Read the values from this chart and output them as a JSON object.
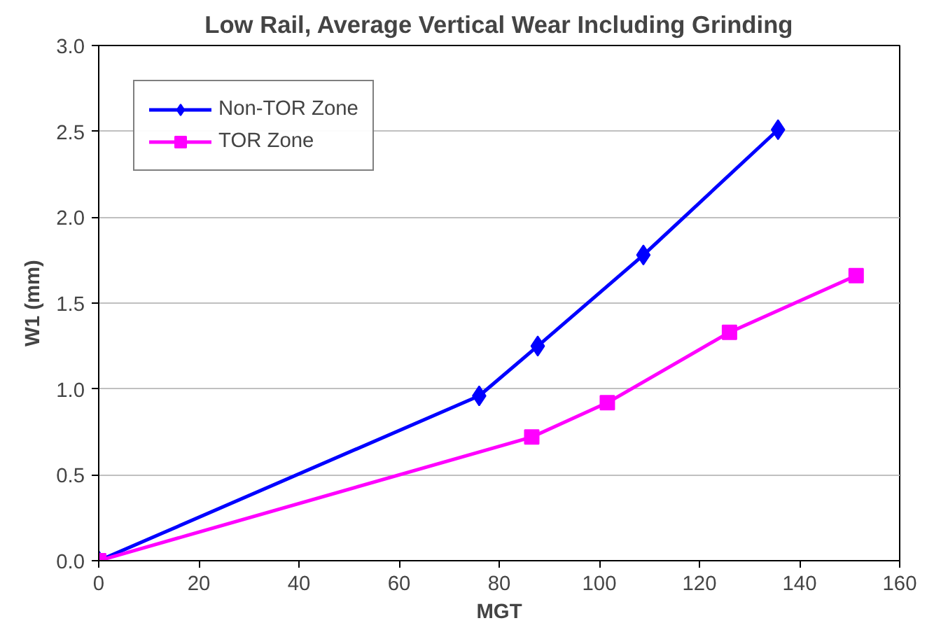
{
  "chart_data": {
    "type": "line",
    "title": "Low Rail, Average Vertical Wear Including Grinding",
    "xlabel": "MGT",
    "ylabel": "W1 (mm)",
    "xlim": [
      0,
      160
    ],
    "xticks": [
      0,
      20,
      40,
      60,
      80,
      100,
      120,
      140,
      160
    ],
    "ylim": [
      0,
      3.0
    ],
    "yticks": [
      {
        "value": 0,
        "label": "0.0"
      },
      {
        "value": 0.5,
        "label": "0.5"
      },
      {
        "value": 1.0,
        "label": "1.0"
      },
      {
        "value": 1.5,
        "label": "1.5"
      },
      {
        "value": 2.0,
        "label": "2.0"
      },
      {
        "value": 2.5,
        "label": "2.5"
      },
      {
        "value": 3.0,
        "label": "3.0"
      }
    ],
    "grid": "y",
    "legend": "top left",
    "series": [
      {
        "name": "Non-TOR Zone",
        "color": "#0000ff",
        "marker": "diamond",
        "x": [
          0,
          76,
          87.7,
          108.8,
          135.7
        ],
        "values": [
          0,
          0.96,
          1.25,
          1.78,
          2.51
        ]
      },
      {
        "name": "TOR Zone",
        "color": "#ff00ff",
        "marker": "square",
        "x": [
          0,
          86.5,
          101.6,
          126,
          151.3
        ],
        "values": [
          0,
          0.72,
          0.92,
          1.33,
          1.66
        ]
      }
    ]
  }
}
